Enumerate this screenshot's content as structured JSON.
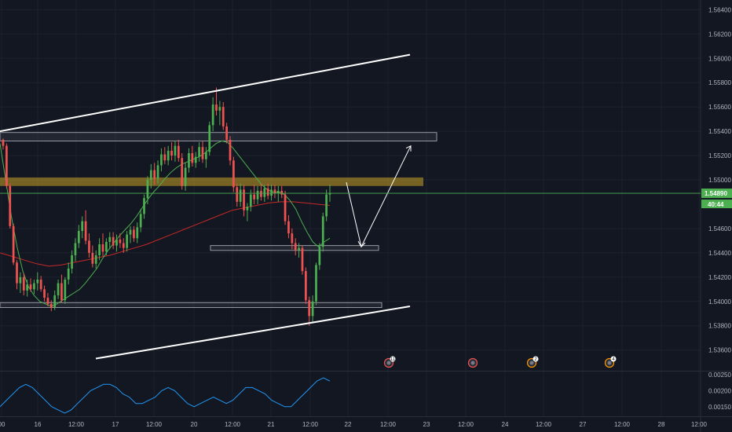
{
  "colors": {
    "background": "#131722",
    "grid": "#1e222d",
    "bull": "#4caf50",
    "bear": "#ef5350",
    "ema_fast": "#4caf50",
    "ema_slow": "#c62828",
    "trendline": "#ffffff",
    "zone_fill": "#c9a227",
    "box_stroke": "#9598a1",
    "oscillator": "#2196f3",
    "current_price_line": "#4caf50",
    "current_price_badge": "#4caf50"
  },
  "chart_data": [
    {
      "type": "candlestick",
      "title": "",
      "y_ticks": [
        "1.56400",
        "1.56200",
        "1.56000",
        "1.55800",
        "1.55600",
        "1.55400",
        "1.55200",
        "1.55000",
        "1.54600",
        "1.54400",
        "1.54200",
        "1.54000",
        "1.53800",
        "1.53600"
      ],
      "ylim": [
        1.5343,
        1.5648
      ],
      "x_ticks": [
        "00",
        "16",
        "12:00",
        "17",
        "12:00",
        "20",
        "12:00",
        "21",
        "12:00",
        "22",
        "12:00",
        "23",
        "12:00",
        "24",
        "12:00",
        "27",
        "12:00",
        "28",
        "12:00"
      ],
      "current_price": "1.54890",
      "countdown": "40:44",
      "price_scale_hidden_label": "1.",
      "candles": [
        [
          1.5533,
          1.5534,
          1.5525,
          1.5528
        ],
        [
          1.5528,
          1.553,
          1.5493,
          1.5495
        ],
        [
          1.5495,
          1.5497,
          1.546,
          1.5462
        ],
        [
          1.5462,
          1.5464,
          1.543,
          1.5432
        ],
        [
          1.5432,
          1.5434,
          1.541,
          1.5415
        ],
        [
          1.5415,
          1.5424,
          1.5407,
          1.542
        ],
        [
          1.542,
          1.5423,
          1.5405,
          1.5409
        ],
        [
          1.5409,
          1.5418,
          1.5404,
          1.5414
        ],
        [
          1.5414,
          1.5419,
          1.5408,
          1.541
        ],
        [
          1.541,
          1.5418,
          1.5406,
          1.5415
        ],
        [
          1.5415,
          1.5424,
          1.5409,
          1.5418
        ],
        [
          1.5418,
          1.5421,
          1.5408,
          1.541
        ],
        [
          1.541,
          1.5413,
          1.54,
          1.5403
        ],
        [
          1.5403,
          1.5407,
          1.5396,
          1.5398
        ],
        [
          1.5398,
          1.5401,
          1.5392,
          1.5395
        ],
        [
          1.5395,
          1.5409,
          1.5393,
          1.5405
        ],
        [
          1.5405,
          1.5418,
          1.5402,
          1.5415
        ],
        [
          1.5415,
          1.5422,
          1.5399,
          1.5401
        ],
        [
          1.5401,
          1.542,
          1.5398,
          1.5418
        ],
        [
          1.5418,
          1.5432,
          1.5414,
          1.5427
        ],
        [
          1.5427,
          1.5442,
          1.5423,
          1.5438
        ],
        [
          1.5438,
          1.5452,
          1.5433,
          1.5448
        ],
        [
          1.5448,
          1.5463,
          1.5444,
          1.5458
        ],
        [
          1.5458,
          1.547,
          1.5452,
          1.5466
        ],
        [
          1.5466,
          1.5475,
          1.5447,
          1.545
        ],
        [
          1.545,
          1.5456,
          1.5436,
          1.544
        ],
        [
          1.544,
          1.5446,
          1.5428,
          1.5431
        ],
        [
          1.5431,
          1.5442,
          1.5427,
          1.5438
        ],
        [
          1.5438,
          1.5452,
          1.5434,
          1.5447
        ],
        [
          1.5447,
          1.5456,
          1.5437,
          1.5441
        ],
        [
          1.5441,
          1.5452,
          1.5438,
          1.5449
        ],
        [
          1.5449,
          1.5457,
          1.5443,
          1.5453
        ],
        [
          1.5453,
          1.5457,
          1.5443,
          1.5446
        ],
        [
          1.5446,
          1.5455,
          1.5441,
          1.5451
        ],
        [
          1.5451,
          1.5456,
          1.5444,
          1.5448
        ],
        [
          1.5448,
          1.5452,
          1.544,
          1.5444
        ],
        [
          1.5444,
          1.5458,
          1.5441,
          1.5455
        ],
        [
          1.5455,
          1.5462,
          1.5448,
          1.5459
        ],
        [
          1.5459,
          1.5462,
          1.5449,
          1.5452
        ],
        [
          1.5452,
          1.5465,
          1.5448,
          1.5461
        ],
        [
          1.5461,
          1.5476,
          1.5457,
          1.5472
        ],
        [
          1.5472,
          1.5488,
          1.5468,
          1.5485
        ],
        [
          1.5485,
          1.5503,
          1.548,
          1.55
        ],
        [
          1.55,
          1.5513,
          1.5493,
          1.5508
        ],
        [
          1.5508,
          1.5514,
          1.5496,
          1.5501
        ],
        [
          1.5501,
          1.5516,
          1.5497,
          1.5512
        ],
        [
          1.5512,
          1.5526,
          1.5507,
          1.5521
        ],
        [
          1.5521,
          1.5527,
          1.5513,
          1.5516
        ],
        [
          1.5516,
          1.5528,
          1.5512,
          1.5524
        ],
        [
          1.5524,
          1.5531,
          1.5516,
          1.552
        ],
        [
          1.552,
          1.5532,
          1.5515,
          1.5528
        ],
        [
          1.5528,
          1.5533,
          1.5515,
          1.5518
        ],
        [
          1.5518,
          1.5522,
          1.5492,
          1.5495
        ],
        [
          1.5495,
          1.5514,
          1.5491,
          1.551
        ],
        [
          1.551,
          1.5526,
          1.5506,
          1.5522
        ],
        [
          1.5522,
          1.5528,
          1.5511,
          1.5514
        ],
        [
          1.5514,
          1.5523,
          1.551,
          1.5519
        ],
        [
          1.5519,
          1.5531,
          1.5515,
          1.5527
        ],
        [
          1.5527,
          1.5532,
          1.5514,
          1.5517
        ],
        [
          1.5517,
          1.5527,
          1.551,
          1.5523
        ],
        [
          1.5523,
          1.5548,
          1.552,
          1.5545
        ],
        [
          1.5545,
          1.5568,
          1.554,
          1.5562
        ],
        [
          1.5562,
          1.5576,
          1.5553,
          1.5557
        ],
        [
          1.5557,
          1.5565,
          1.5545,
          1.556
        ],
        [
          1.556,
          1.5564,
          1.5541,
          1.5544
        ],
        [
          1.5544,
          1.5547,
          1.553,
          1.5533
        ],
        [
          1.5533,
          1.5536,
          1.5512,
          1.5516
        ],
        [
          1.5516,
          1.5519,
          1.549,
          1.5494
        ],
        [
          1.5494,
          1.5497,
          1.5478,
          1.5482
        ],
        [
          1.5482,
          1.5497,
          1.5478,
          1.5492
        ],
        [
          1.5492,
          1.5496,
          1.547,
          1.5475
        ],
        [
          1.5475,
          1.5481,
          1.5466,
          1.5478
        ],
        [
          1.5478,
          1.5492,
          1.5474,
          1.5488
        ],
        [
          1.5488,
          1.5496,
          1.548,
          1.5484
        ],
        [
          1.5484,
          1.5495,
          1.548,
          1.5491
        ],
        [
          1.5491,
          1.5497,
          1.5483,
          1.5486
        ],
        [
          1.5486,
          1.5496,
          1.5482,
          1.5493
        ],
        [
          1.5493,
          1.5497,
          1.5484,
          1.5487
        ],
        [
          1.5487,
          1.5496,
          1.5483,
          1.5492
        ],
        [
          1.5492,
          1.5496,
          1.5485,
          1.5489
        ],
        [
          1.5489,
          1.5495,
          1.5482,
          1.5491
        ],
        [
          1.5491,
          1.5495,
          1.5485,
          1.5488
        ],
        [
          1.5488,
          1.5491,
          1.5463,
          1.5466
        ],
        [
          1.5466,
          1.5471,
          1.5452,
          1.5456
        ],
        [
          1.5456,
          1.546,
          1.5443,
          1.5448
        ],
        [
          1.5448,
          1.5452,
          1.5438,
          1.5442
        ],
        [
          1.5442,
          1.5448,
          1.5436,
          1.5444
        ],
        [
          1.5444,
          1.5446,
          1.5422,
          1.5425
        ],
        [
          1.5425,
          1.5428,
          1.5398,
          1.5401
        ],
        [
          1.5401,
          1.5404,
          1.538,
          1.5388
        ],
        [
          1.5388,
          1.5405,
          1.5383,
          1.54
        ],
        [
          1.54,
          1.5432,
          1.5397,
          1.543
        ],
        [
          1.543,
          1.5448,
          1.5426,
          1.5445
        ],
        [
          1.5445,
          1.5473,
          1.5441,
          1.547
        ],
        [
          1.547,
          1.5492,
          1.5466,
          1.5488
        ],
        [
          1.5488,
          1.5496,
          1.5482,
          1.5489
        ]
      ],
      "indicators": {
        "ema_fast": [
          1.553,
          1.55,
          1.547,
          1.5445,
          1.5425,
          1.5412,
          1.5405,
          1.54,
          1.5398,
          1.5396,
          1.5398,
          1.5401,
          1.5404,
          1.5407,
          1.541,
          1.5415,
          1.5421,
          1.5427,
          1.5435,
          1.5442,
          1.5448,
          1.5454,
          1.5459,
          1.5464,
          1.547,
          1.5477,
          1.5484,
          1.549,
          1.5495,
          1.5501,
          1.5506,
          1.551,
          1.5513,
          1.5515,
          1.5517,
          1.5519,
          1.5522,
          1.5526,
          1.553,
          1.5532,
          1.5531,
          1.5526,
          1.552,
          1.5514,
          1.5508,
          1.5502,
          1.5496,
          1.5492,
          1.549,
          1.549,
          1.5488,
          1.5483,
          1.5476,
          1.5466,
          1.5457,
          1.5449,
          1.5445,
          1.5449,
          1.5452
        ],
        "ema_slow": [
          1.544,
          1.5437,
          1.5434,
          1.5431,
          1.5429,
          1.543,
          1.5432,
          1.5434,
          1.5436,
          1.5438,
          1.5441,
          1.5444,
          1.5447,
          1.5451,
          1.5455,
          1.5459,
          1.5463,
          1.5467,
          1.5471,
          1.5475,
          1.5477,
          1.5479,
          1.5481,
          1.5482,
          1.5482,
          1.5481,
          1.548,
          1.5479
        ],
        "oscillator": [
          0.0015,
          0.0017,
          0.0019,
          0.0021,
          0.0022,
          0.0021,
          0.0019,
          0.0017,
          0.0015,
          0.0014,
          0.0013,
          0.0014,
          0.0016,
          0.0018,
          0.002,
          0.0021,
          0.0022,
          0.0022,
          0.0021,
          0.0019,
          0.0018,
          0.0016,
          0.0016,
          0.0017,
          0.0018,
          0.002,
          0.0021,
          0.002,
          0.0018,
          0.0016,
          0.0015,
          0.0016,
          0.0017,
          0.0018,
          0.0017,
          0.0016,
          0.0017,
          0.0019,
          0.0021,
          0.0021,
          0.002,
          0.0019,
          0.0017,
          0.0016,
          0.0015,
          0.0015,
          0.0017,
          0.0019,
          0.0021,
          0.0023,
          0.0024,
          0.0023
        ]
      },
      "annotations": {
        "supply_box_price": [
          1.5532,
          1.5539
        ],
        "yellow_zone_price": [
          1.5495,
          1.5502
        ],
        "demand_box_price": [
          1.5442,
          1.5446
        ],
        "bottom_box_price": [
          1.5395,
          1.5399
        ],
        "upper_channel_line": [
          [
            1.554
          ],
          [
            1.5603
          ]
        ],
        "lower_channel_line": [
          [
            1.5353
          ],
          [
            1.5396
          ]
        ],
        "projection_path_prices": [
          1.5498,
          1.5445,
          1.5528
        ]
      },
      "events": [
        {
          "label": "11",
          "kind": "high-impact"
        },
        {
          "label": "",
          "kind": "high-impact"
        },
        {
          "label": "2",
          "kind": "medium-impact"
        },
        {
          "label": "4",
          "kind": "medium-impact"
        }
      ],
      "oscillator_ticks": [
        "0.00250",
        "0.00200",
        "0.00150"
      ],
      "oscillator_ylim": [
        0.0012,
        0.0026
      ]
    }
  ]
}
